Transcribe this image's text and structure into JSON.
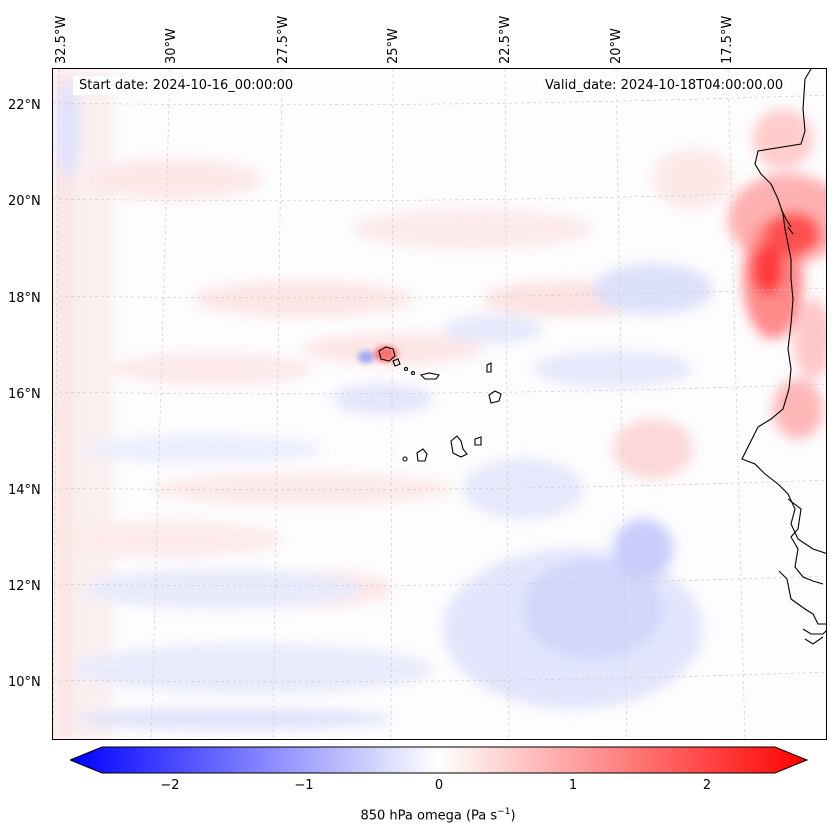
{
  "header": {
    "start_date": "Start date: 2024-10-16_00:00:00",
    "valid_date": "Valid_date: 2024-10-18T04:00:00.00"
  },
  "longitude_labels": [
    "32.5°W",
    "30°W",
    "27.5°W",
    "25°W",
    "22.5°W",
    "20°W",
    "17.5°W"
  ],
  "latitude_labels": [
    "22°N",
    "20°N",
    "18°N",
    "16°N",
    "14°N",
    "12°N",
    "10°N"
  ],
  "colorbar": {
    "label_main": "850 hPa omega (Pa s",
    "label_sup": "−1",
    "label_end": ")",
    "ticks": [
      "−2",
      "−1",
      "0",
      "1",
      "2"
    ],
    "min": -2.75,
    "max": 2.75,
    "colors": {
      "negative": "#0000ff",
      "zero": "#ffffff",
      "positive": "#ff0000"
    }
  }
}
